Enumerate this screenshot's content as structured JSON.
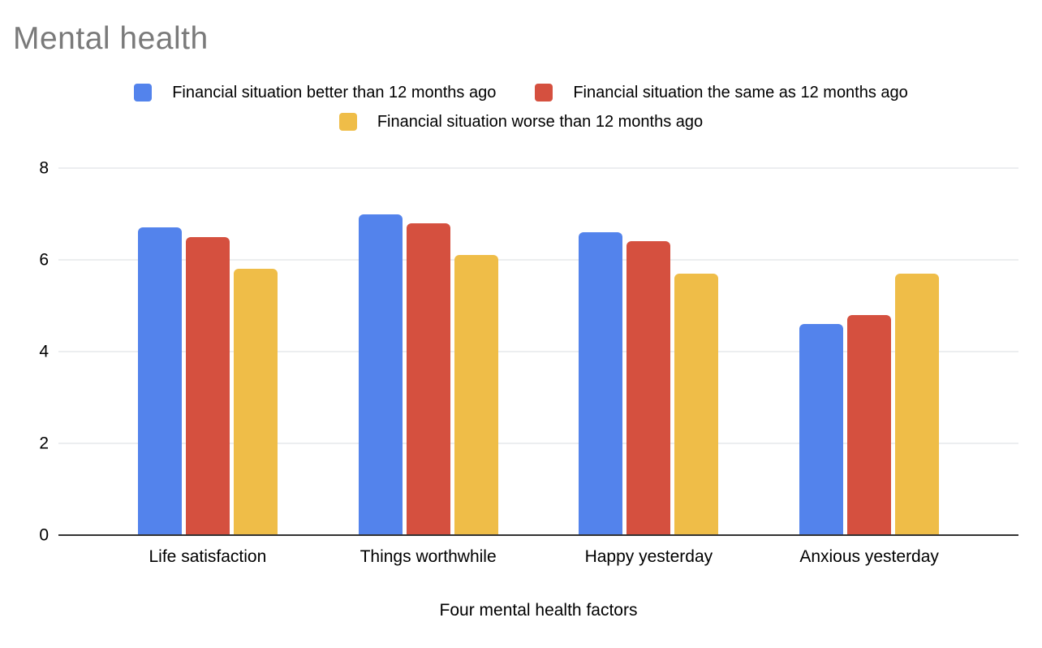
{
  "header": {
    "title": "Mental health"
  },
  "chart_data": {
    "type": "bar",
    "title": "Mental health",
    "categories": [
      "Life satisfaction",
      "Things worthwhile",
      "Happy yesterday",
      "Anxious yesterday"
    ],
    "series": [
      {
        "name": "Financial situation better than 12 months ago",
        "color": "#5383EC",
        "values": [
          6.7,
          7.0,
          6.6,
          4.6
        ]
      },
      {
        "name": "Financial situation the same as 12 months ago",
        "color": "#D5503F",
        "values": [
          6.5,
          6.8,
          6.4,
          4.8
        ]
      },
      {
        "name": "Financial situation worse than 12 months ago",
        "color": "#EFBD48",
        "values": [
          5.8,
          6.1,
          5.7,
          5.7
        ]
      }
    ],
    "xlabel": "Four mental health factors",
    "ylabel": "",
    "ylim": [
      0,
      8
    ],
    "yticks": [
      0,
      2,
      4,
      6,
      8
    ],
    "grid": true,
    "legend_position": "top"
  },
  "colors": {
    "title_text": "#7a7a7a",
    "axis_text": "#000000",
    "gridline": "#dadce0",
    "baseline": "#333333",
    "background": "#ffffff"
  }
}
